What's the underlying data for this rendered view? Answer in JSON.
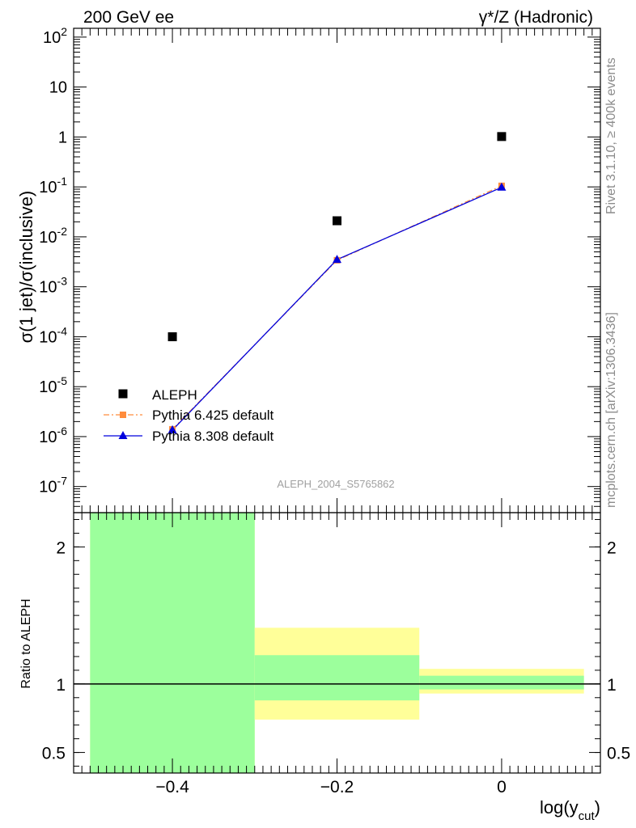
{
  "header": {
    "left": "200 GeV ee",
    "right": "γ*/Z (Hadronic)"
  },
  "side_labels": {
    "rivet": "Rivet 3.1.10, ≥ 400k events",
    "mcplots": "mcplots.cern.ch [arXiv:1306.3436]"
  },
  "colors": {
    "aleph": "#000000",
    "pythia6": "#ff8c3c",
    "pythia8": "#0000dd",
    "band_inner": "#9cff9c",
    "band_outer": "#ffff99",
    "side_text": "#8c8c8c"
  },
  "chart_data": [
    {
      "type": "scatter",
      "panel": "main",
      "ylabel": "σ(1 jet)/σ(inclusive)",
      "yscale": "log",
      "ylim": [
        3e-08,
        150
      ],
      "xlim": [
        -0.52,
        0.12
      ],
      "y_tick_labels": [
        "10^-7",
        "10^-6",
        "10^-5",
        "10^-4",
        "10^-3",
        "10^-2",
        "10^-1",
        "1",
        "10",
        "10^2"
      ],
      "watermark": "ALEPH_2004_S5765862",
      "legend_position": "lower-left",
      "series": [
        {
          "name": "ALEPH",
          "marker": "square",
          "x": [
            -0.4,
            -0.2,
            0.0
          ],
          "y": [
            0.0001,
            0.021,
            1.02
          ]
        },
        {
          "name": "Pythia 6.425 default",
          "marker": "square",
          "line": "dash-dot",
          "x": [
            -0.4,
            -0.2,
            0.0
          ],
          "y": [
            1.4e-06,
            0.0034,
            0.105
          ]
        },
        {
          "name": "Pythia 8.308 default",
          "marker": "triangle",
          "line": "solid",
          "x": [
            -0.4,
            -0.2,
            0.0
          ],
          "y": [
            1.35e-06,
            0.0035,
            0.098
          ]
        }
      ]
    },
    {
      "type": "area",
      "panel": "ratio",
      "ylabel": "Ratio to ALEPH",
      "xlabel": "log(y_cut)",
      "ylim": [
        0.35,
        2.25
      ],
      "y_tick_labels": [
        "0.5",
        "1",
        "2"
      ],
      "x_tick_labels": [
        "−0.4",
        "−0.2",
        "0"
      ],
      "reference_line": 1.0,
      "bands": [
        {
          "x_range": [
            -0.5,
            -0.3
          ],
          "inner": [
            0.35,
            2.25
          ],
          "outer": [
            0.35,
            2.25
          ]
        },
        {
          "x_range": [
            -0.3,
            -0.1
          ],
          "inner": [
            0.88,
            1.21
          ],
          "outer": [
            0.74,
            1.41
          ]
        },
        {
          "x_range": [
            -0.1,
            0.1
          ],
          "inner": [
            0.96,
            1.06
          ],
          "outer": [
            0.93,
            1.11
          ]
        }
      ]
    }
  ]
}
